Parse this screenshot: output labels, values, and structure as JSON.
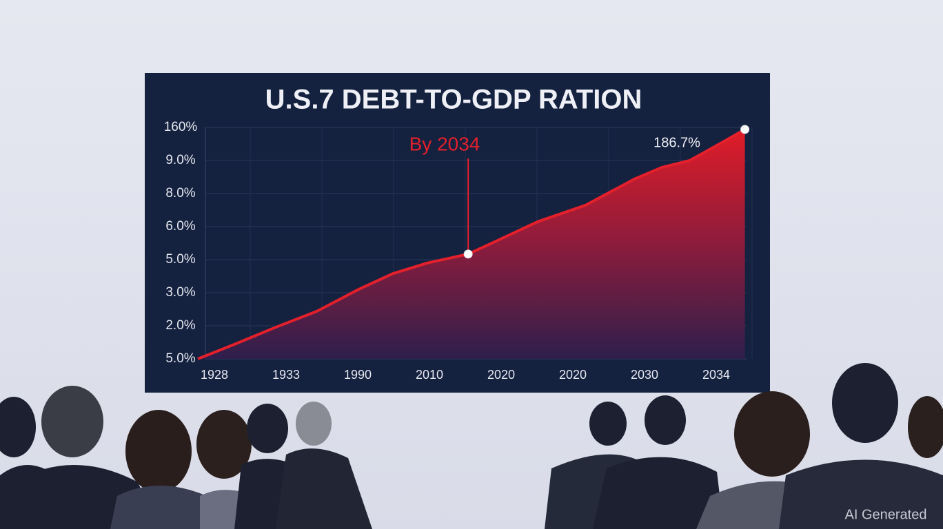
{
  "chart_data": {
    "type": "area",
    "title": "U.S.7 DEBT-TO-GDP RATION",
    "annotations": [
      "By 2034",
      "186.7%"
    ],
    "watermark": "AI Generated",
    "xlim": [
      -0.25,
      7.5
    ],
    "xticks": [
      {
        "value": 0,
        "label": "1928"
      },
      {
        "value": 1,
        "label": "1933"
      },
      {
        "value": 2,
        "label": "1990"
      },
      {
        "value": 3,
        "label": "2010"
      },
      {
        "value": 4,
        "label": "2020"
      },
      {
        "value": 5,
        "label": "2020"
      },
      {
        "value": 6,
        "label": "2030"
      },
      {
        "value": 7,
        "label": "2034"
      }
    ],
    "ylim": [
      0,
      7
    ],
    "yticks": [
      {
        "value": 0,
        "label": "5.0%"
      },
      {
        "value": 1,
        "label": "2.0%"
      },
      {
        "value": 2,
        "label": "3.0%"
      },
      {
        "value": 3,
        "label": "5.0%"
      },
      {
        "value": 4,
        "label": "6.0%"
      },
      {
        "value": 5,
        "label": "8.0%"
      },
      {
        "value": 6,
        "label": "9.0%"
      },
      {
        "value": 7,
        "label": "160%"
      }
    ],
    "grid": true,
    "color": "#e3202b",
    "x": [
      -0.23,
      0.28,
      0.86,
      1.43,
      2.01,
      2.49,
      2.97,
      3.54,
      3.93,
      4.51,
      5.18,
      5.86,
      6.24,
      6.63,
      7.11,
      7.4
    ],
    "values": [
      0,
      0.44,
      0.96,
      1.44,
      2.1,
      2.58,
      2.9,
      3.17,
      3.56,
      4.15,
      4.65,
      5.44,
      5.79,
      6.0,
      6.58,
      6.94
    ]
  }
}
